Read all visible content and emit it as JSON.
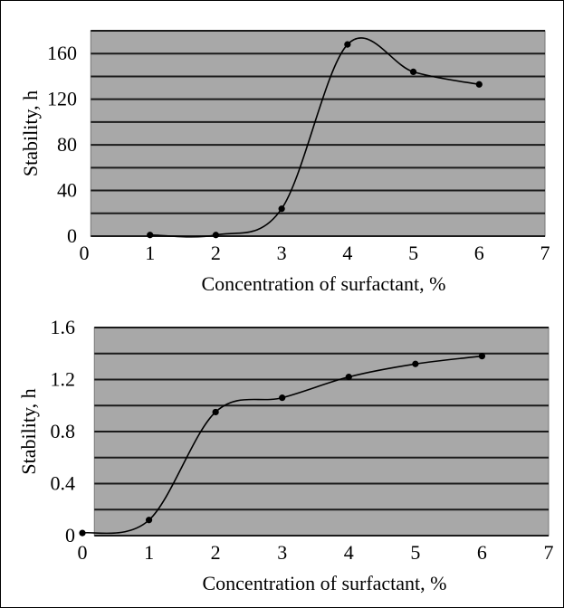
{
  "chart_data": [
    {
      "type": "line",
      "xlabel": "Concentration of surfactant, %",
      "ylabel": "Stability, h",
      "xlim": [
        0,
        7
      ],
      "ylim": [
        0,
        180
      ],
      "x_ticks": [
        "0",
        "1",
        "2",
        "3",
        "4",
        "5",
        "6",
        "7"
      ],
      "y_ticks": [
        "0",
        "40",
        "80",
        "120",
        "160"
      ],
      "grid": true,
      "gridlines": [
        0,
        20,
        40,
        60,
        80,
        100,
        120,
        140,
        160,
        180
      ],
      "plot_background": "#a8a8a8",
      "line_color": "#000000",
      "series": [
        {
          "x": [
            1,
            2,
            3,
            4,
            5,
            6
          ],
          "values": [
            1,
            1,
            24,
            168,
            144,
            133
          ]
        }
      ]
    },
    {
      "type": "line",
      "xlabel": "Concentration of surfactant, %",
      "ylabel": "Stability, h",
      "xlim": [
        0,
        7
      ],
      "ylim": [
        0,
        1.6
      ],
      "x_ticks": [
        "0",
        "1",
        "2",
        "3",
        "4",
        "5",
        "6",
        "7"
      ],
      "y_ticks": [
        "0",
        "0.4",
        "0.8",
        "1.2",
        "1.6"
      ],
      "grid": true,
      "gridlines": [
        0,
        0.2,
        0.4,
        0.6,
        0.8,
        1.0,
        1.2,
        1.4,
        1.6
      ],
      "plot_background": "#a8a8a8",
      "line_color": "#000000",
      "series": [
        {
          "x": [
            0,
            1,
            2,
            3,
            4,
            5,
            6
          ],
          "values": [
            0.02,
            0.12,
            0.95,
            1.06,
            1.22,
            1.32,
            1.38
          ]
        }
      ]
    }
  ]
}
